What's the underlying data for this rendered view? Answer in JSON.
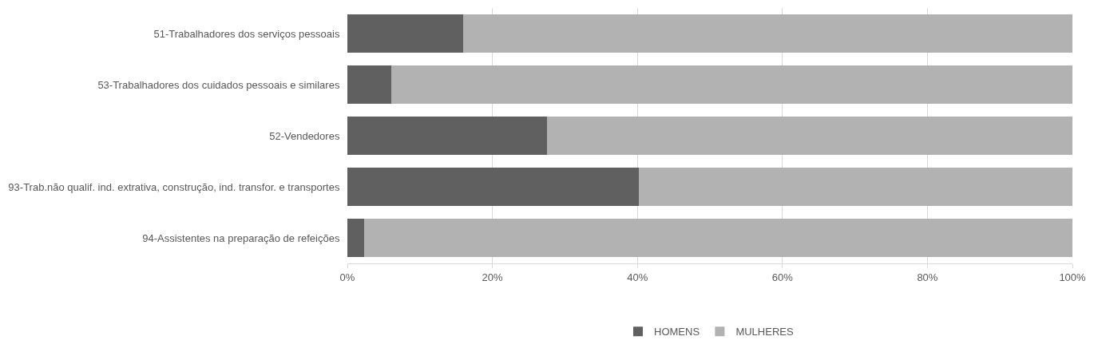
{
  "chart_data": {
    "type": "bar",
    "orientation": "horizontal",
    "stacked": true,
    "categories": [
      "51-Trabalhadores dos serviços pessoais",
      "53-Trabalhadores dos cuidados pessoais e similares",
      "52-Vendedores",
      "93-Trab.não qualif. ind. extrativa, construção, ind. transfor. e transportes",
      "94-Assistentes na preparação de refeições"
    ],
    "series": [
      {
        "name": "HOMENS",
        "color": "#606060",
        "values": [
          16.0,
          6.1,
          27.5,
          40.2,
          2.3
        ]
      },
      {
        "name": "MULHERES",
        "color": "#b2b2b2",
        "values": [
          84.0,
          93.9,
          72.5,
          59.8,
          97.7
        ]
      }
    ],
    "xlim": [
      0,
      100
    ],
    "xticks": [
      {
        "value": 0,
        "label": "0%"
      },
      {
        "value": 20,
        "label": "20%"
      },
      {
        "value": 40,
        "label": "40%"
      },
      {
        "value": 60,
        "label": "60%"
      },
      {
        "value": 80,
        "label": "80%"
      },
      {
        "value": 100,
        "label": "100%"
      }
    ],
    "grid": "x",
    "legend": "bottom"
  }
}
